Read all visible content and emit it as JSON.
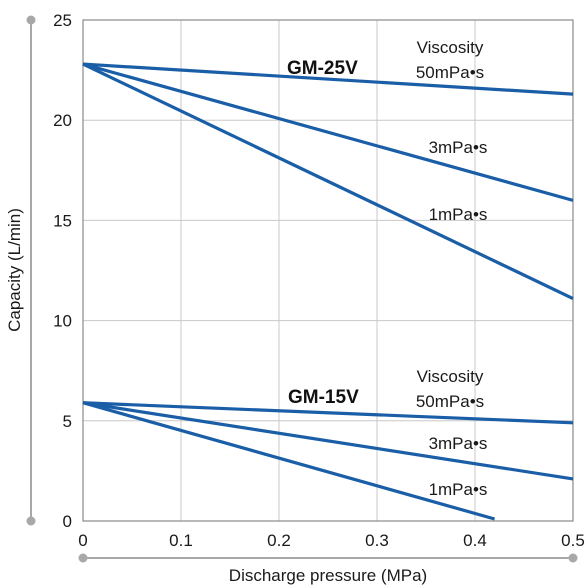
{
  "chart_data": {
    "type": "line",
    "title": "",
    "xlabel": "Discharge pressure (MPa)",
    "ylabel": "Capacity (L/min)",
    "xlim": [
      0,
      0.5
    ],
    "ylim": [
      0,
      25
    ],
    "x_ticks": [
      "0",
      "0.1",
      "0.2",
      "0.3",
      "0.4",
      "0.5"
    ],
    "y_ticks": [
      "0",
      "5",
      "10",
      "15",
      "20",
      "25"
    ],
    "grid": true,
    "line_color": "#1a5ea8",
    "series": [
      {
        "name": "GM-25V 50mPa•s",
        "x": [
          0,
          0.5
        ],
        "y": [
          22.8,
          21.3
        ]
      },
      {
        "name": "GM-25V 3mPa•s",
        "x": [
          0,
          0.5
        ],
        "y": [
          22.8,
          16.0
        ]
      },
      {
        "name": "GM-25V 1mPa•s",
        "x": [
          0,
          0.5
        ],
        "y": [
          22.8,
          11.1
        ]
      },
      {
        "name": "GM-15V 50mPa•s",
        "x": [
          0,
          0.5
        ],
        "y": [
          5.9,
          4.9
        ]
      },
      {
        "name": "GM-15V 3mPa•s",
        "x": [
          0,
          0.5
        ],
        "y": [
          5.9,
          2.1
        ]
      },
      {
        "name": "GM-15V 1mPa•s",
        "x": [
          0,
          0.42
        ],
        "y": [
          5.9,
          0.1
        ]
      }
    ],
    "annotations": {
      "gm25_label": "GM-25V",
      "gm15_label": "GM-15V",
      "viscosity_word": "Viscosity",
      "v50": "50mPa•s",
      "v3": "3mPa•s",
      "v1": "1mPa•s"
    }
  }
}
